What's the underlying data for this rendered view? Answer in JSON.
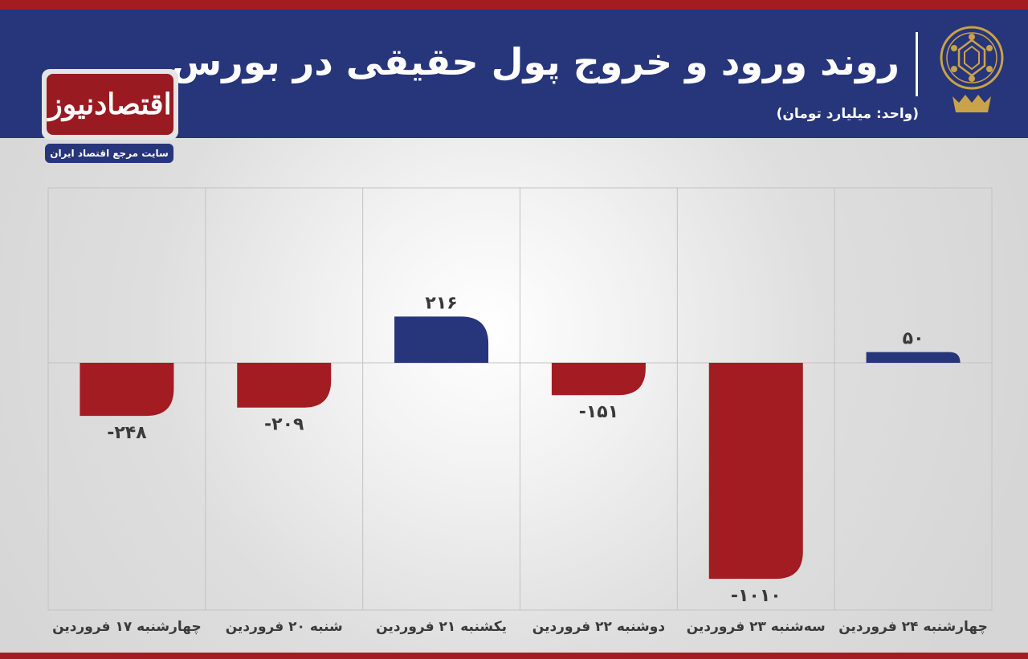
{
  "header": {
    "title": "روند ورود و خروج پول حقیقی در بورس",
    "subtitle": "(واحد: میلیارد تومان)"
  },
  "logo": {
    "name": "اقتصادنیوز",
    "tagline": "سایت مرجع اقتصاد ایران"
  },
  "colors": {
    "header_bg": "#27357a",
    "accent_red": "#a31c22",
    "positive_bar": "#27357a",
    "negative_bar": "#a31c22"
  },
  "chart_data": {
    "type": "bar",
    "title": "روند ورود و خروج پول حقیقی در بورس",
    "unit": "(واحد: میلیارد تومان)",
    "categories": [
      "چهارشنبه ۱۷ فروردین",
      "شنبه ۲۰ فروردین",
      "یکشنبه ۲۱ فروردین",
      "دوشنبه ۲۲ فروردین",
      "سه‌شنبه ۲۳ فروردین",
      "چهارشنبه ۲۴ فروردین"
    ],
    "values": [
      -248,
      -209,
      216,
      -151,
      -1010,
      50
    ],
    "value_labels": [
      "-۲۴۸",
      "-۲۰۹",
      "۲۱۶",
      "-۱۵۱",
      "-۱۰۱۰",
      "۵۰"
    ],
    "ylim": [
      -1140,
      813
    ],
    "grid": true,
    "legend": "none"
  }
}
